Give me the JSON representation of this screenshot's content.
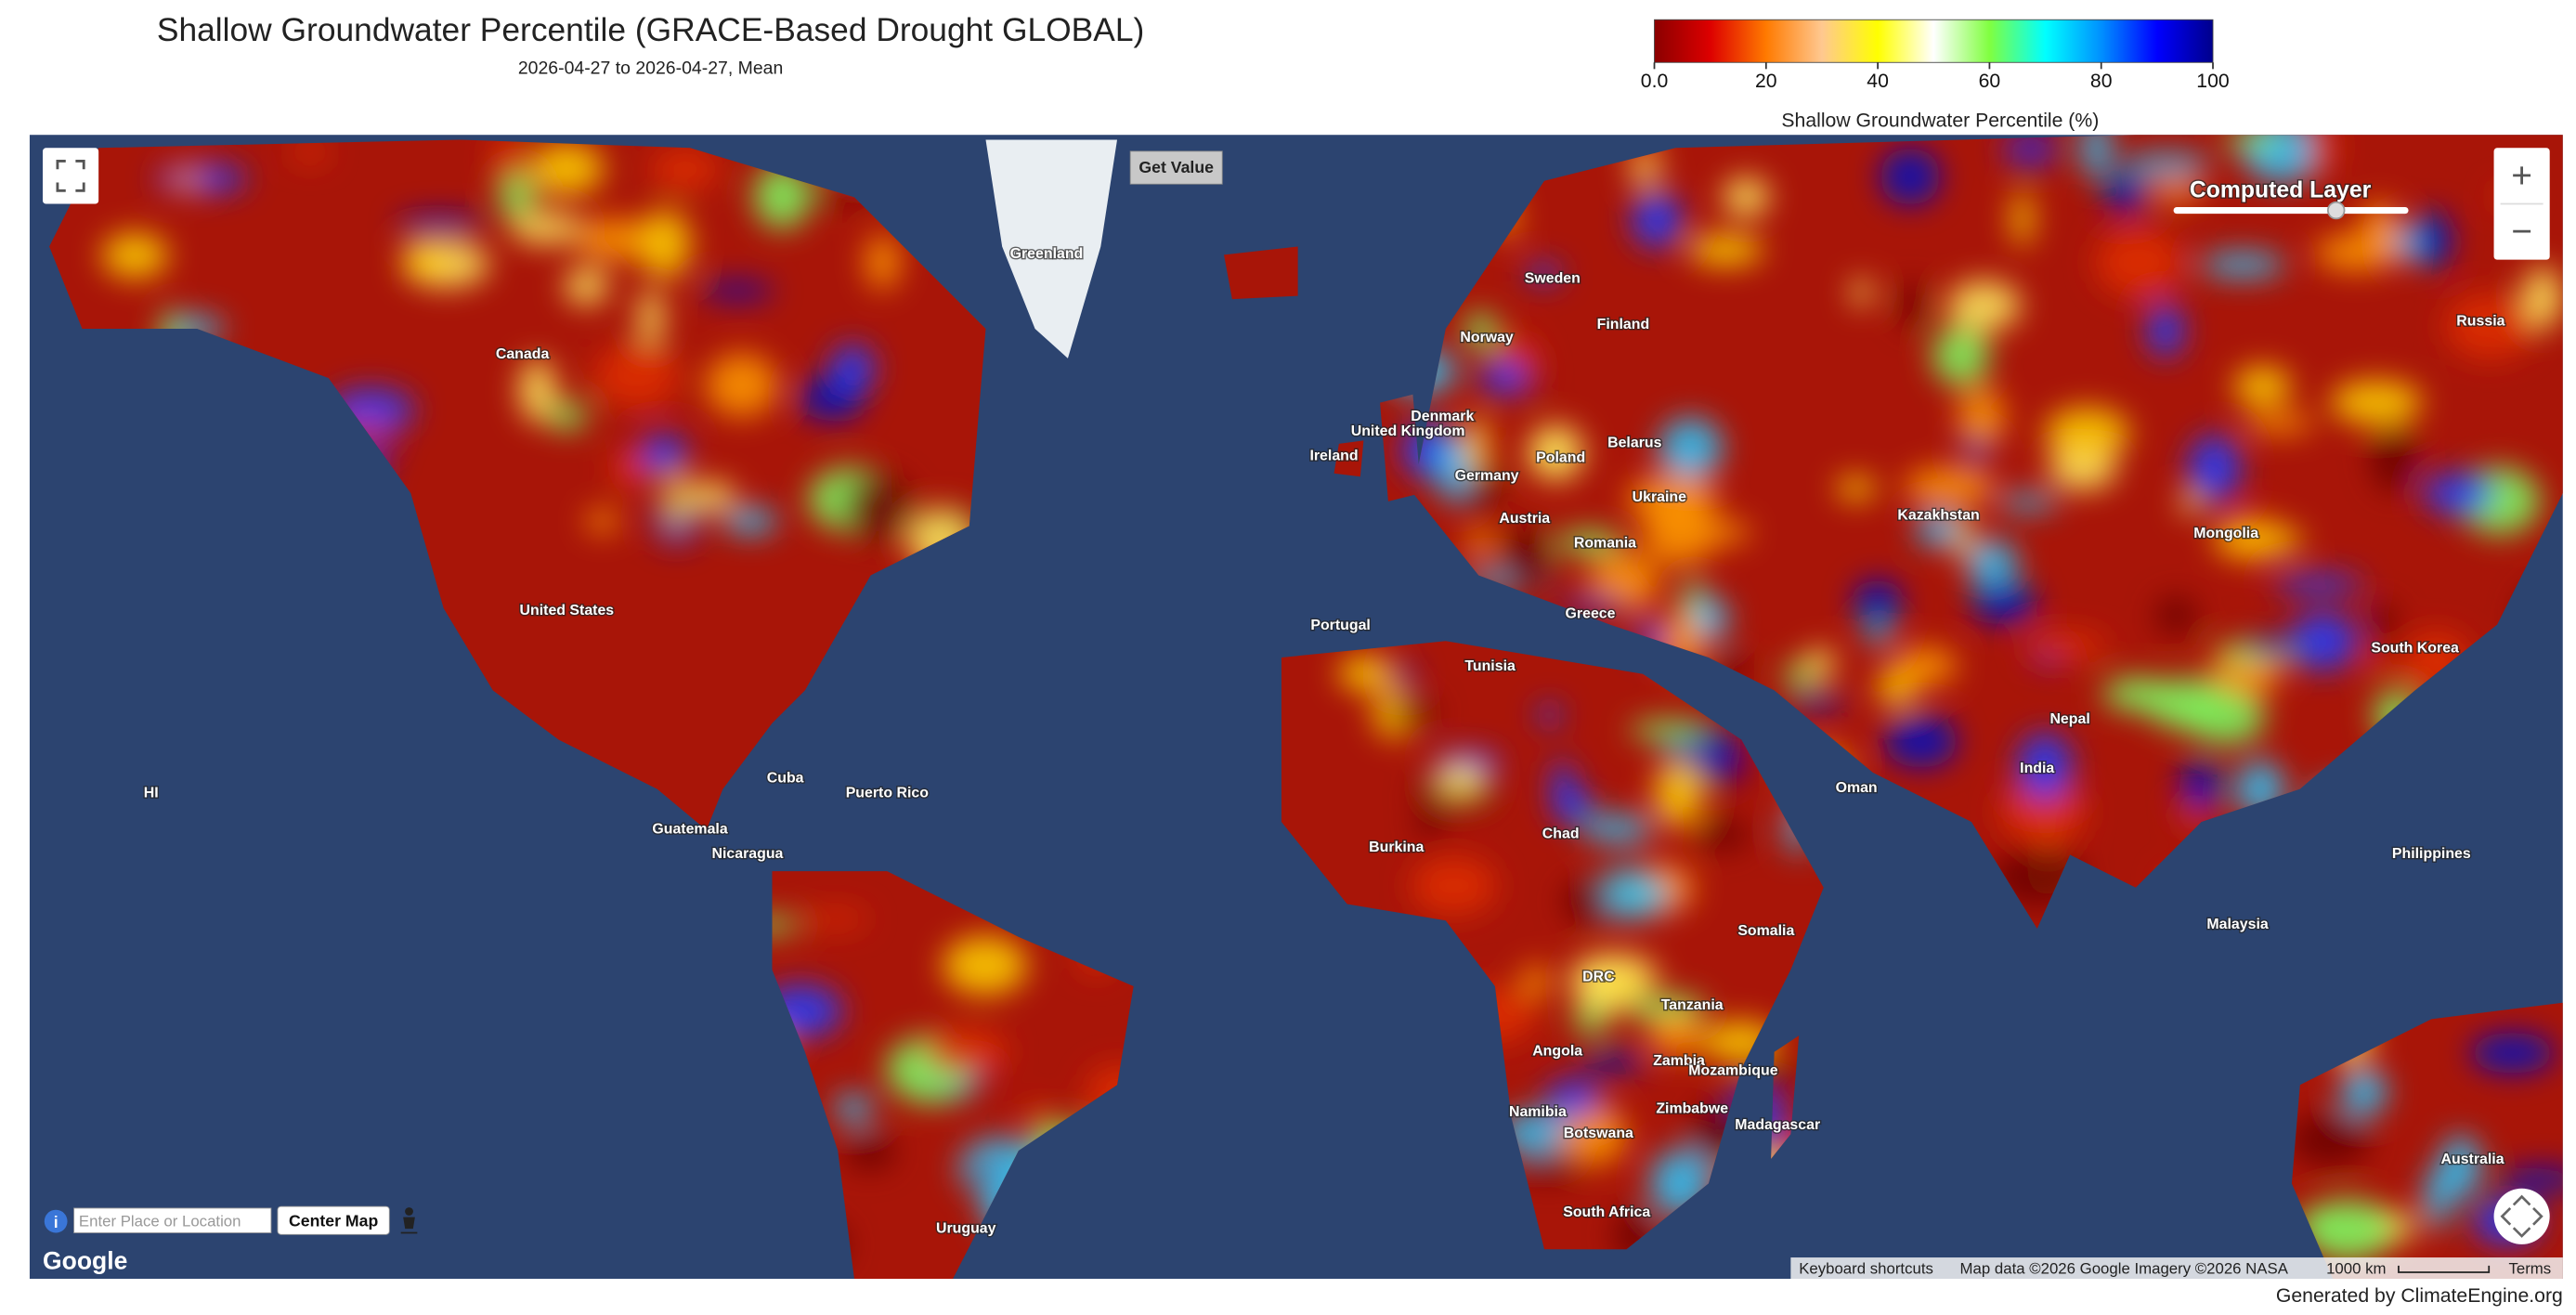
{
  "header": {
    "title": "Shallow Groundwater Percentile (GRACE-Based Drought GLOBAL)",
    "subtitle": "2026-04-27 to 2026-04-27, Mean"
  },
  "legend": {
    "label": "Shallow Groundwater Percentile (%)",
    "min": 0,
    "max": 100,
    "ticks": [
      {
        "value": 0,
        "label": "0.0"
      },
      20,
      40,
      60,
      80,
      100
    ],
    "colors": [
      "#8b0000",
      "#dd0000",
      "#ff7a00",
      "#ffc890",
      "#ffff00",
      "#ffffff",
      "#80ff40",
      "#00ffff",
      "#0090ff",
      "#0000ff",
      "#00008b"
    ]
  },
  "map": {
    "labels": [
      "Greenland",
      "United Kingdom",
      "Ireland",
      "Germany",
      "Poland",
      "Belarus",
      "Ukraine",
      "Austria",
      "Romania",
      "Greece",
      "Portugal",
      "Tunisia",
      "Kazakhstan",
      "Mongolia",
      "Russia",
      "Finland",
      "Sweden",
      "Norway",
      "Denmark",
      "South Korea",
      "Philippines",
      "Malaysia",
      "India",
      "Nepal",
      "Oman",
      "Somalia",
      "Chad",
      "Burkina",
      "DRC",
      "Angola",
      "Zambia",
      "Tanzania",
      "Mozambique",
      "Madagascar",
      "Namibia",
      "Botswana",
      "Zimbabwe",
      "South Africa",
      "Cuba",
      "Puerto Rico",
      "Nicaragua",
      "Guatemala",
      "Uruguay",
      "Australia",
      "HI",
      "United States",
      "Canada"
    ]
  },
  "controls": {
    "get_value": "Get Value",
    "computed_layer": "Computed Layer",
    "zoom_in": "+",
    "zoom_out": "−",
    "search_placeholder": "Enter Place or Location",
    "center_map": "Center Map"
  },
  "footer": {
    "google": "Google",
    "attribution": [
      "Keyboard shortcuts",
      "Map data ©2026 Google Imagery ©2026 NASA",
      "1000 km",
      "Terms"
    ],
    "credit": "Generated by ClimateEngine.org"
  }
}
